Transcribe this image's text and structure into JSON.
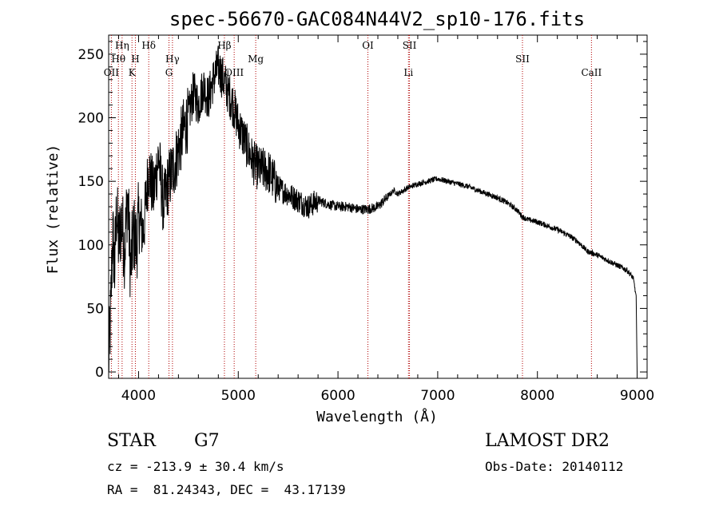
{
  "chart_data": {
    "type": "line",
    "title": "spec-56670-GAC084N44V2_sp10-176.fits",
    "xlabel": "Wavelength (Å)",
    "ylabel": "Flux (relative)",
    "xlim": [
      3700,
      9100
    ],
    "ylim": [
      -5,
      265
    ],
    "xticks": [
      4000,
      5000,
      6000,
      7000,
      8000,
      9000
    ],
    "yticks": [
      0,
      50,
      100,
      150,
      200,
      250
    ],
    "grid": false,
    "series": [
      {
        "x": [
          3700,
          3720,
          3740,
          3760,
          3780,
          3800,
          3830,
          3860,
          3890,
          3920,
          3950,
          3980,
          4000,
          4050,
          4100,
          4150,
          4200,
          4250,
          4300,
          4350,
          4400,
          4450,
          4500,
          4550,
          4600,
          4650,
          4700,
          4750,
          4800,
          4850,
          4900,
          4950,
          5000,
          5050,
          5100,
          5150,
          5200,
          5300,
          5400,
          5500,
          5600,
          5700,
          5800,
          5900,
          6000,
          6100,
          6200,
          6300,
          6400,
          6500,
          6560,
          6600,
          6700,
          6800,
          6900,
          7000,
          7100,
          7200,
          7300,
          7400,
          7500,
          7600,
          7700,
          7800,
          7850,
          7900,
          8000,
          8100,
          8200,
          8300,
          8400,
          8500,
          8600,
          8700,
          8800,
          8900,
          8960,
          8990,
          9000
        ],
        "y": [
          5,
          45,
          110,
          80,
          130,
          100,
          120,
          95,
          140,
          80,
          110,
          100,
          120,
          110,
          160,
          140,
          170,
          130,
          150,
          160,
          175,
          190,
          200,
          220,
          210,
          225,
          215,
          230,
          240,
          230,
          220,
          210,
          195,
          185,
          175,
          165,
          160,
          158,
          145,
          140,
          135,
          130,
          135,
          132,
          130,
          130,
          128,
          128,
          130,
          138,
          143,
          140,
          145,
          148,
          150,
          152,
          150,
          148,
          146,
          143,
          140,
          137,
          133,
          127,
          122,
          120,
          118,
          115,
          112,
          108,
          103,
          95,
          92,
          88,
          84,
          80,
          74,
          60,
          0
        ]
      }
    ],
    "lines": [
      {
        "label": "Hθ",
        "x": 3798,
        "row": 2
      },
      {
        "label": "Hη",
        "x": 3835,
        "row": 1
      },
      {
        "label": "OII",
        "x": 3727,
        "row": 3
      },
      {
        "label": "H",
        "x": 3968,
        "row": 2
      },
      {
        "label": "K",
        "x": 3934,
        "row": 3
      },
      {
        "label": "Hδ",
        "x": 4102,
        "row": 1
      },
      {
        "label": "Hγ",
        "x": 4340,
        "row": 2
      },
      {
        "label": "G",
        "x": 4305,
        "row": 3
      },
      {
        "label": "Hβ",
        "x": 4861,
        "row": 1
      },
      {
        "label": "OIII",
        "x": 4959,
        "row": 3
      },
      {
        "label": "Mg",
        "x": 5175,
        "row": 2
      },
      {
        "label": "OI",
        "x": 6300,
        "row": 1
      },
      {
        "label": "SII",
        "x": 6717,
        "row": 1
      },
      {
        "label": "Li",
        "x": 6707,
        "row": 3
      },
      {
        "label": "SII",
        "x": 7850,
        "row": 2
      },
      {
        "label": "CaII",
        "x": 8542,
        "row": 3
      }
    ]
  },
  "footer": {
    "object_class": "STAR",
    "subclass": "G7",
    "survey": "LAMOST DR2",
    "cz": "cz = -213.9 ± 30.4 km/s",
    "obs_date": "Obs-Date: 20140112",
    "coords": "RA =  81.24343, DEC =  43.17139"
  }
}
